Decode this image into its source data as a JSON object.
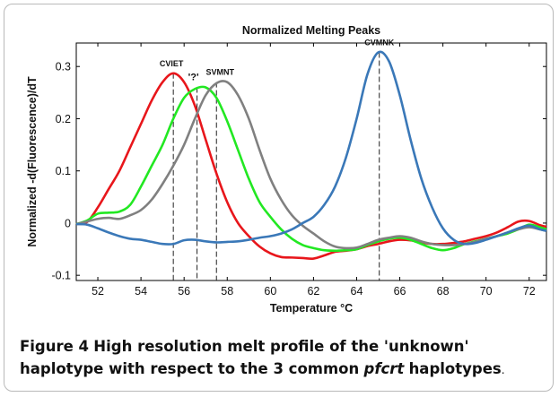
{
  "figure": {
    "caption_label": "Figure 4",
    "caption_text_1": "High resolution melt profile of the 'unknown' haplotype with respect to the 3 common",
    "caption_italic": "pfcrt",
    "caption_text_2": "haplotypes",
    "caption_end": "."
  },
  "chart_data": {
    "type": "line",
    "title": "Normalized Melting Peaks",
    "xlabel": "Temperature °C",
    "ylabel": "Normalized -d(Fluorescence)/dT",
    "xlim": [
      51,
      72.8
    ],
    "ylim": [
      -0.11,
      0.345
    ],
    "xticks": [
      52,
      54,
      56,
      58,
      60,
      62,
      64,
      66,
      68,
      70,
      72
    ],
    "yticks": [
      -0.1,
      0,
      0.1,
      0.2,
      0.3
    ],
    "ytick_labels": [
      "-0.1",
      "0",
      "0.1",
      "0.2",
      "0.3"
    ],
    "grid": false,
    "series": [
      {
        "color": "#e8161b",
        "points": [
          [
            51,
            -0.002
          ],
          [
            51.5,
            0.002
          ],
          [
            52,
            0.03
          ],
          [
            52.5,
            0.065
          ],
          [
            53,
            0.1
          ],
          [
            53.5,
            0.145
          ],
          [
            54,
            0.19
          ],
          [
            54.5,
            0.235
          ],
          [
            55,
            0.27
          ],
          [
            55.5,
            0.287
          ],
          [
            56,
            0.27
          ],
          [
            56.5,
            0.225
          ],
          [
            57,
            0.16
          ],
          [
            57.5,
            0.095
          ],
          [
            58,
            0.04
          ],
          [
            58.5,
            0.0
          ],
          [
            59,
            -0.025
          ],
          [
            59.5,
            -0.045
          ],
          [
            60,
            -0.058
          ],
          [
            60.5,
            -0.065
          ],
          [
            61,
            -0.066
          ],
          [
            61.5,
            -0.067
          ],
          [
            62,
            -0.068
          ],
          [
            62.5,
            -0.062
          ],
          [
            63,
            -0.055
          ],
          [
            63.5,
            -0.053
          ],
          [
            64,
            -0.05
          ],
          [
            64.5,
            -0.044
          ],
          [
            65,
            -0.04
          ],
          [
            65.5,
            -0.035
          ],
          [
            66,
            -0.032
          ],
          [
            66.5,
            -0.033
          ],
          [
            67,
            -0.037
          ],
          [
            67.5,
            -0.04
          ],
          [
            68,
            -0.04
          ],
          [
            68.5,
            -0.038
          ],
          [
            69,
            -0.035
          ],
          [
            69.5,
            -0.03
          ],
          [
            70,
            -0.025
          ],
          [
            70.5,
            -0.018
          ],
          [
            71,
            -0.008
          ],
          [
            71.5,
            0.003
          ],
          [
            72,
            0.004
          ],
          [
            72.5,
            -0.004
          ],
          [
            72.8,
            -0.007
          ]
        ]
      },
      {
        "color": "#22e822",
        "points": [
          [
            51,
            -0.002
          ],
          [
            51.5,
            0.005
          ],
          [
            52,
            0.018
          ],
          [
            52.5,
            0.02
          ],
          [
            53,
            0.022
          ],
          [
            53.5,
            0.035
          ],
          [
            54,
            0.07
          ],
          [
            54.5,
            0.11
          ],
          [
            55,
            0.15
          ],
          [
            55.5,
            0.2
          ],
          [
            56,
            0.24
          ],
          [
            56.5,
            0.257
          ],
          [
            57,
            0.26
          ],
          [
            57.5,
            0.24
          ],
          [
            58,
            0.195
          ],
          [
            58.5,
            0.14
          ],
          [
            59,
            0.085
          ],
          [
            59.5,
            0.04
          ],
          [
            60,
            0.012
          ],
          [
            60.5,
            -0.012
          ],
          [
            61,
            -0.03
          ],
          [
            61.5,
            -0.042
          ],
          [
            62,
            -0.048
          ],
          [
            62.5,
            -0.052
          ],
          [
            63,
            -0.053
          ],
          [
            63.5,
            -0.052
          ],
          [
            64,
            -0.05
          ],
          [
            64.5,
            -0.042
          ],
          [
            65,
            -0.035
          ],
          [
            65.5,
            -0.03
          ],
          [
            66,
            -0.028
          ],
          [
            66.5,
            -0.032
          ],
          [
            67,
            -0.04
          ],
          [
            67.5,
            -0.048
          ],
          [
            68,
            -0.052
          ],
          [
            68.5,
            -0.048
          ],
          [
            69,
            -0.04
          ],
          [
            69.5,
            -0.035
          ],
          [
            70,
            -0.03
          ],
          [
            70.5,
            -0.025
          ],
          [
            71,
            -0.02
          ],
          [
            71.5,
            -0.012
          ],
          [
            72,
            -0.003
          ],
          [
            72.5,
            -0.008
          ],
          [
            72.8,
            -0.012
          ]
        ]
      },
      {
        "color": "#808080",
        "points": [
          [
            51,
            -0.002
          ],
          [
            51.5,
            0.003
          ],
          [
            52,
            0.008
          ],
          [
            52.5,
            0.01
          ],
          [
            53,
            0.008
          ],
          [
            53.5,
            0.015
          ],
          [
            54,
            0.025
          ],
          [
            54.5,
            0.045
          ],
          [
            55,
            0.075
          ],
          [
            55.5,
            0.11
          ],
          [
            56,
            0.15
          ],
          [
            56.5,
            0.2
          ],
          [
            57,
            0.245
          ],
          [
            57.5,
            0.268
          ],
          [
            58,
            0.27
          ],
          [
            58.5,
            0.245
          ],
          [
            59,
            0.2
          ],
          [
            59.5,
            0.14
          ],
          [
            60,
            0.085
          ],
          [
            60.5,
            0.045
          ],
          [
            61,
            0.015
          ],
          [
            61.5,
            -0.005
          ],
          [
            62,
            -0.02
          ],
          [
            62.5,
            -0.035
          ],
          [
            63,
            -0.045
          ],
          [
            63.5,
            -0.048
          ],
          [
            64,
            -0.047
          ],
          [
            64.5,
            -0.04
          ],
          [
            65,
            -0.032
          ],
          [
            65.5,
            -0.028
          ],
          [
            66,
            -0.025
          ],
          [
            66.5,
            -0.028
          ],
          [
            67,
            -0.035
          ],
          [
            67.5,
            -0.04
          ],
          [
            68,
            -0.042
          ],
          [
            68.5,
            -0.042
          ],
          [
            69,
            -0.04
          ],
          [
            69.5,
            -0.036
          ],
          [
            70,
            -0.03
          ],
          [
            70.5,
            -0.025
          ],
          [
            71,
            -0.018
          ],
          [
            71.5,
            -0.012
          ],
          [
            72,
            -0.008
          ],
          [
            72.5,
            -0.012
          ],
          [
            72.8,
            -0.015
          ]
        ]
      },
      {
        "color": "#3a78b8",
        "points": [
          [
            51,
            -0.002
          ],
          [
            51.5,
            -0.003
          ],
          [
            52,
            -0.01
          ],
          [
            52.5,
            -0.018
          ],
          [
            53,
            -0.025
          ],
          [
            53.5,
            -0.03
          ],
          [
            54,
            -0.032
          ],
          [
            54.5,
            -0.036
          ],
          [
            55,
            -0.04
          ],
          [
            55.5,
            -0.04
          ],
          [
            56,
            -0.033
          ],
          [
            56.5,
            -0.032
          ],
          [
            57,
            -0.035
          ],
          [
            57.5,
            -0.037
          ],
          [
            58,
            -0.036
          ],
          [
            58.5,
            -0.035
          ],
          [
            59,
            -0.032
          ],
          [
            59.5,
            -0.028
          ],
          [
            60,
            -0.025
          ],
          [
            60.5,
            -0.02
          ],
          [
            61,
            -0.012
          ],
          [
            61.5,
            0.0
          ],
          [
            62,
            0.012
          ],
          [
            62.5,
            0.035
          ],
          [
            63,
            0.07
          ],
          [
            63.5,
            0.125
          ],
          [
            64,
            0.2
          ],
          [
            64.5,
            0.285
          ],
          [
            65,
            0.327
          ],
          [
            65.5,
            0.31
          ],
          [
            66,
            0.245
          ],
          [
            66.5,
            0.16
          ],
          [
            67,
            0.085
          ],
          [
            67.5,
            0.03
          ],
          [
            68,
            -0.01
          ],
          [
            68.5,
            -0.032
          ],
          [
            69,
            -0.04
          ],
          [
            69.5,
            -0.038
          ],
          [
            70,
            -0.032
          ],
          [
            70.5,
            -0.025
          ],
          [
            71,
            -0.018
          ],
          [
            71.5,
            -0.01
          ],
          [
            72,
            -0.005
          ],
          [
            72.5,
            -0.012
          ],
          [
            72.8,
            -0.015
          ]
        ]
      }
    ],
    "annotations": [
      {
        "label": "CVIET",
        "x": 55.5,
        "y": 0.287
      },
      {
        "label": "'?'",
        "x": 56.6,
        "y": 0.26
      },
      {
        "label": "SVMNT",
        "x": 57.5,
        "y": 0.27
      },
      {
        "label": "CVMNK",
        "x": 65.05,
        "y": 0.327
      }
    ]
  }
}
